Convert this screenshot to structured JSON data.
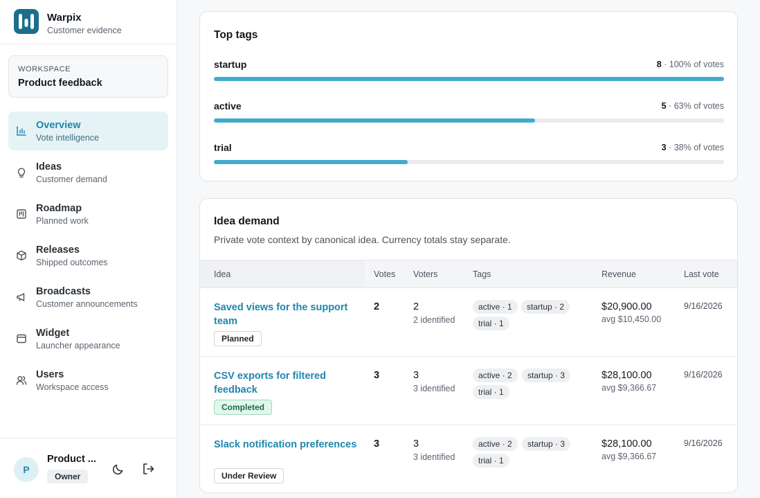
{
  "app": {
    "name": "Warpix",
    "tagline": "Customer evidence"
  },
  "workspace": {
    "label": "WORKSPACE",
    "name": "Product feedback"
  },
  "nav": [
    {
      "title": "Overview",
      "sub": "Vote intelligence",
      "icon": "chart-icon",
      "active": true
    },
    {
      "title": "Ideas",
      "sub": "Customer demand",
      "icon": "lightbulb-icon"
    },
    {
      "title": "Roadmap",
      "sub": "Planned work",
      "icon": "kanban-icon"
    },
    {
      "title": "Releases",
      "sub": "Shipped outcomes",
      "icon": "package-icon"
    },
    {
      "title": "Broadcasts",
      "sub": "Customer announcements",
      "icon": "megaphone-icon"
    },
    {
      "title": "Widget",
      "sub": "Launcher appearance",
      "icon": "window-icon"
    },
    {
      "title": "Users",
      "sub": "Workspace access",
      "icon": "users-icon"
    }
  ],
  "user": {
    "initial": "P",
    "name": "Product ...",
    "role": "Owner"
  },
  "top_tags": {
    "title": "Top tags",
    "tags": [
      {
        "name": "startup",
        "count": "8",
        "share": " · 100% of votes",
        "fraction": 1.0
      },
      {
        "name": "active",
        "count": "5",
        "share": " · 63% of votes",
        "fraction": 0.63
      },
      {
        "name": "trial",
        "count": "3",
        "share": " · 38% of votes",
        "fraction": 0.38
      }
    ]
  },
  "idea_demand": {
    "title": "Idea demand",
    "subtitle": "Private vote context by canonical idea. Currency totals stay separate.",
    "columns": {
      "idea": "Idea",
      "votes": "Votes",
      "voters": "Voters",
      "tags": "Tags",
      "revenue": "Revenue",
      "last_vote": "Last vote"
    },
    "rows": [
      {
        "idea": "Saved views for the support team",
        "status": "Planned",
        "status_type": "planned",
        "votes": "2",
        "voters": "2",
        "identified": "2 identified",
        "tags": [
          "active · 1",
          "startup · 2",
          "trial · 1"
        ],
        "revenue": "$20,900.00",
        "avg": "avg $10,450.00",
        "last_vote": "9/16/2026"
      },
      {
        "idea": "CSV exports for filtered feedback",
        "status": "Completed",
        "status_type": "completed",
        "votes": "3",
        "voters": "3",
        "identified": "3 identified",
        "tags": [
          "active · 2",
          "startup · 3",
          "trial · 1"
        ],
        "revenue": "$28,100.00",
        "avg": "avg $9,366.67",
        "last_vote": "9/16/2026"
      },
      {
        "idea": "Slack notification preferences",
        "status": "Under Review",
        "status_type": "review",
        "votes": "3",
        "voters": "3",
        "identified": "3 identified",
        "tags": [
          "active · 2",
          "startup · 3",
          "trial · 1"
        ],
        "revenue": "$28,100.00",
        "avg": "avg $9,366.67",
        "last_vote": "9/16/2026"
      }
    ]
  },
  "colors": {
    "accent": "#1e87ad",
    "bar": "#43aacd",
    "active_bg": "#e5f3f7"
  }
}
